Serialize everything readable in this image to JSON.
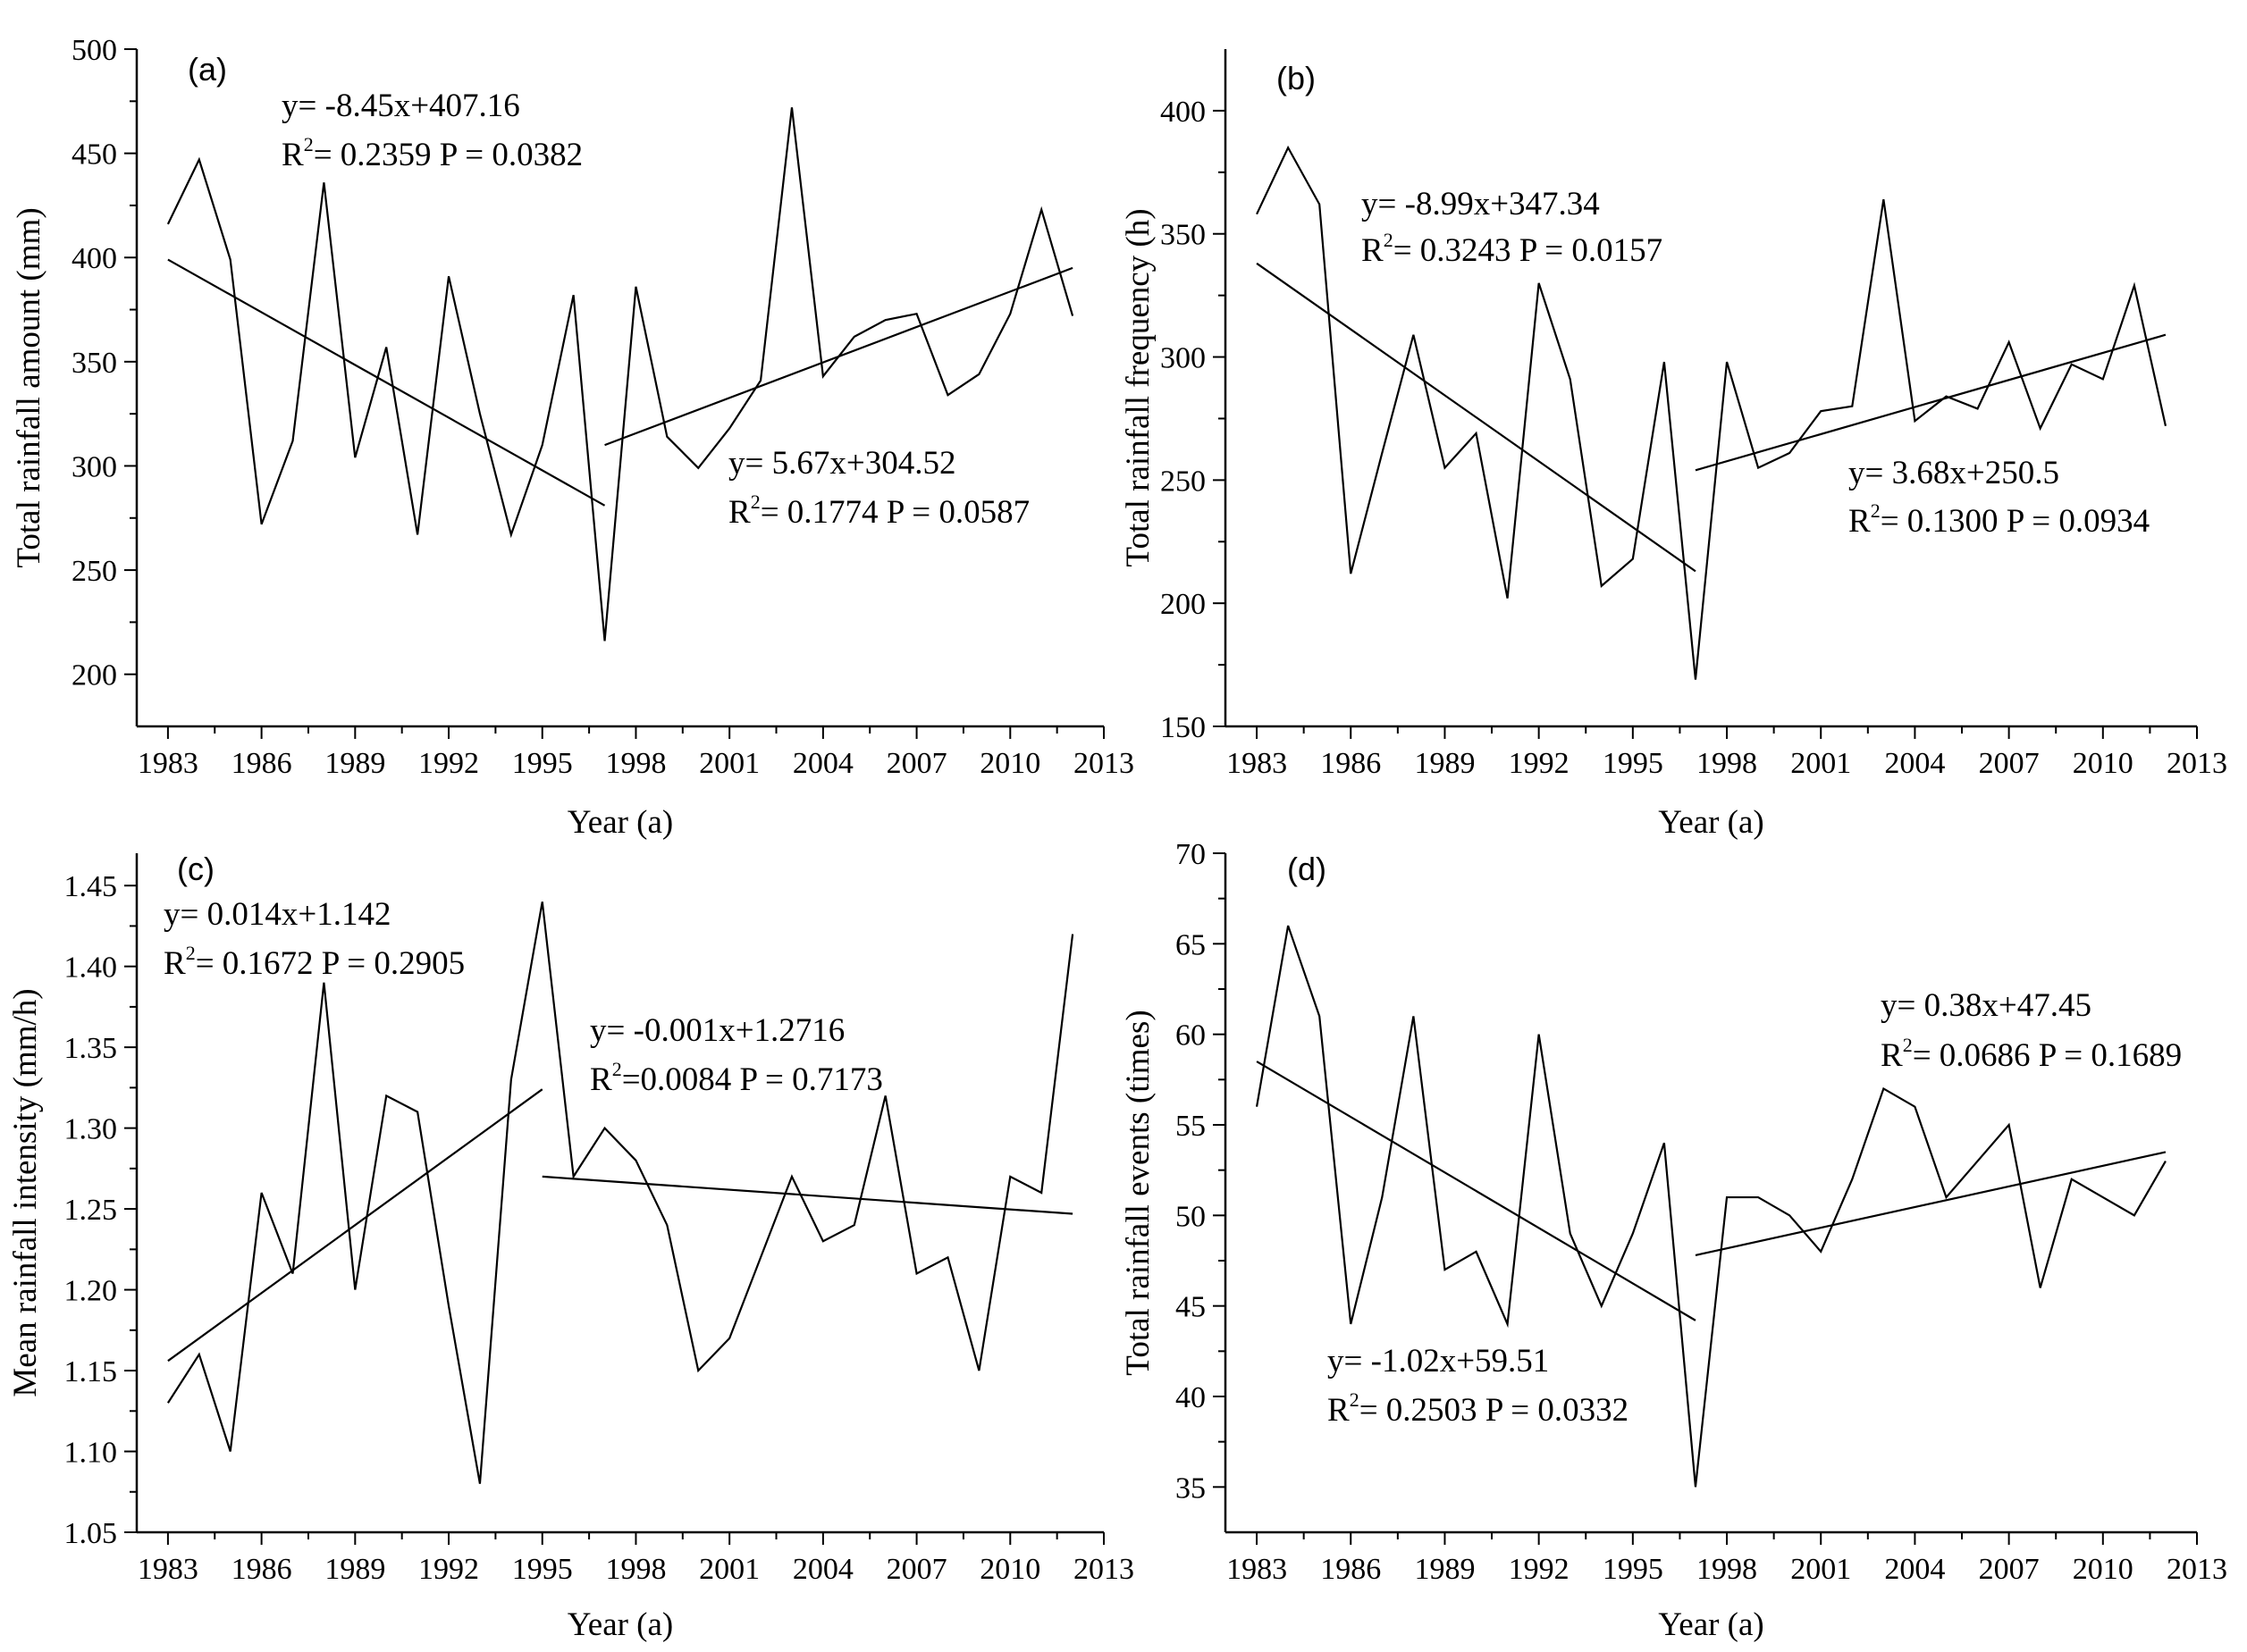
{
  "figure": {
    "background": "#ffffff",
    "line_color": "#000000"
  },
  "chart_data": [
    {
      "type": "line",
      "panel": "(a)",
      "xlabel": "Year (a)",
      "ylabel": "Total rainfall amount (mm)",
      "xlim": [
        1982,
        2013
      ],
      "ylim": [
        175,
        500
      ],
      "xticks": [
        1983,
        1986,
        1989,
        1992,
        1995,
        1998,
        2001,
        2004,
        2007,
        2010,
        2013
      ],
      "yticks": [
        200,
        250,
        300,
        350,
        400,
        450,
        500
      ],
      "x": [
        1983,
        1984,
        1985,
        1986,
        1987,
        1988,
        1989,
        1990,
        1991,
        1992,
        1993,
        1994,
        1995,
        1996,
        1997,
        1998,
        1999,
        2000,
        2001,
        2002,
        2003,
        2004,
        2005,
        2006,
        2007,
        2008,
        2009,
        2010,
        2011,
        2012
      ],
      "series": [
        {
          "name": "Total rainfall amount",
          "values": [
            416,
            447,
            399,
            272,
            312,
            436,
            304,
            357,
            267,
            391,
            325,
            267,
            310,
            382,
            216,
            386,
            314,
            299,
            318,
            341,
            472,
            343,
            362,
            370,
            373,
            334,
            344,
            373,
            423,
            372
          ]
        }
      ],
      "trendlines": [
        {
          "x": [
            1983,
            1997
          ],
          "y": [
            399,
            281
          ]
        },
        {
          "x": [
            1997,
            2012
          ],
          "y": [
            310,
            395
          ]
        }
      ],
      "annotations": [
        {
          "equation": "y= -8.45x+407.16",
          "r2_prefix": "R",
          "r2_sup": "2",
          "r2_rest": "= 0.2359   P = 0.0382"
        },
        {
          "equation": "y= 5.67x+304.52",
          "r2_prefix": "R",
          "r2_sup": "2",
          "r2_rest": "= 0.1774   P = 0.0587"
        }
      ]
    },
    {
      "type": "line",
      "panel": "(b)",
      "xlabel": "Year (a)",
      "ylabel": "Total rainfall frequency (h)",
      "xlim": [
        1982,
        2013
      ],
      "ylim": [
        150,
        425
      ],
      "xticks": [
        1983,
        1986,
        1989,
        1992,
        1995,
        1998,
        2001,
        2004,
        2007,
        2010,
        2013
      ],
      "yticks": [
        150,
        200,
        250,
        300,
        350,
        400
      ],
      "x": [
        1983,
        1984,
        1985,
        1986,
        1987,
        1988,
        1989,
        1990,
        1991,
        1992,
        1993,
        1994,
        1995,
        1996,
        1997,
        1998,
        1999,
        2000,
        2001,
        2002,
        2003,
        2004,
        2005,
        2006,
        2007,
        2008,
        2009,
        2010,
        2011,
        2012
      ],
      "series": [
        {
          "name": "Total rainfall frequency",
          "values": [
            358,
            385,
            362,
            212,
            261,
            309,
            255,
            269,
            202,
            330,
            291,
            207,
            218,
            298,
            169,
            298,
            255,
            261,
            278,
            280,
            364,
            274,
            284,
            279,
            306,
            271,
            297,
            291,
            329,
            272
          ]
        }
      ],
      "trendlines": [
        {
          "x": [
            1983,
            1997
          ],
          "y": [
            338,
            213
          ]
        },
        {
          "x": [
            1997,
            2012
          ],
          "y": [
            254,
            309
          ]
        }
      ],
      "annotations": [
        {
          "equation": "y= -8.99x+347.34",
          "r2_prefix": "R",
          "r2_sup": "2",
          "r2_rest": "= 0.3243  P = 0.0157"
        },
        {
          "equation": "y= 3.68x+250.5",
          "r2_prefix": "R",
          "r2_sup": "2",
          "r2_rest": "= 0.1300  P = 0.0934"
        }
      ]
    },
    {
      "type": "line",
      "panel": "(c)",
      "xlabel": "Year (a)",
      "ylabel": "Mean rainfall intensity (mm/h)",
      "xlim": [
        1982,
        2013
      ],
      "ylim": [
        1.05,
        1.47
      ],
      "xticks": [
        1983,
        1986,
        1989,
        1992,
        1995,
        1998,
        2001,
        2004,
        2007,
        2010,
        2013
      ],
      "yticks": [
        "1.05",
        "1.10",
        "1.15",
        "1.20",
        "1.25",
        "1.30",
        "1.35",
        "1.40",
        "1.45"
      ],
      "x": [
        1983,
        1984,
        1985,
        1986,
        1987,
        1988,
        1989,
        1990,
        1991,
        1992,
        1993,
        1994,
        1995,
        1996,
        1997,
        1998,
        1999,
        2000,
        2001,
        2002,
        2003,
        2004,
        2005,
        2006,
        2007,
        2008,
        2009,
        2010,
        2011,
        2012
      ],
      "series": [
        {
          "name": "Mean rainfall intensity",
          "values": [
            1.13,
            1.16,
            1.1,
            1.26,
            1.21,
            1.39,
            1.2,
            1.32,
            1.31,
            1.19,
            1.08,
            1.33,
            1.44,
            1.27,
            1.3,
            1.28,
            1.24,
            1.15,
            1.17,
            1.22,
            1.27,
            1.23,
            1.24,
            1.32,
            1.21,
            1.22,
            1.15,
            1.27,
            1.26,
            1.42
          ]
        }
      ],
      "trendlines": [
        {
          "x": [
            1983,
            1995
          ],
          "y": [
            1.156,
            1.324
          ]
        },
        {
          "x": [
            1995,
            2012
          ],
          "y": [
            1.27,
            1.247
          ]
        }
      ],
      "annotations": [
        {
          "equation": "y= 0.014x+1.142",
          "r2_prefix": "R",
          "r2_sup": "2",
          "r2_rest": "= 0.1672  P = 0.2905"
        },
        {
          "equation": "y= -0.001x+1.2716",
          "r2_prefix": "R",
          "r2_sup": "2",
          "r2_rest": "=0.0084  P = 0.7173"
        }
      ]
    },
    {
      "type": "line",
      "panel": "(d)",
      "xlabel": "Year (a)",
      "ylabel": "Total  rainfall events (times)",
      "xlim": [
        1982,
        2013
      ],
      "ylim": [
        32.5,
        70
      ],
      "xticks": [
        1983,
        1986,
        1989,
        1992,
        1995,
        1998,
        2001,
        2004,
        2007,
        2010,
        2013
      ],
      "yticks": [
        35,
        40,
        45,
        50,
        55,
        60,
        65,
        70
      ],
      "x": [
        1983,
        1984,
        1985,
        1986,
        1987,
        1988,
        1989,
        1990,
        1991,
        1992,
        1993,
        1994,
        1995,
        1996,
        1997,
        1998,
        1999,
        2000,
        2001,
        2002,
        2003,
        2004,
        2005,
        2006,
        2007,
        2008,
        2009,
        2010,
        2011,
        2012
      ],
      "series": [
        {
          "name": "Total rainfall events",
          "values": [
            56,
            66,
            61,
            44,
            51,
            61,
            47,
            48,
            44,
            60,
            49,
            45,
            49,
            54,
            35,
            51,
            51,
            50,
            48,
            52,
            57,
            56,
            51,
            53,
            55,
            46,
            52,
            51,
            50,
            53
          ]
        }
      ],
      "trendlines": [
        {
          "x": [
            1983,
            1997
          ],
          "y": [
            58.5,
            44.2
          ]
        },
        {
          "x": [
            1997,
            2012
          ],
          "y": [
            47.8,
            53.5
          ]
        }
      ],
      "annotations": [
        {
          "equation": "y= 0.38x+47.45",
          "r2_prefix": "R",
          "r2_sup": "2",
          "r2_rest": "= 0.0686  P = 0.1689"
        },
        {
          "equation": "y= -1.02x+59.51",
          "r2_prefix": "R",
          "r2_sup": "2",
          "r2_rest": "= 0.2503  P = 0.0332"
        }
      ]
    }
  ]
}
